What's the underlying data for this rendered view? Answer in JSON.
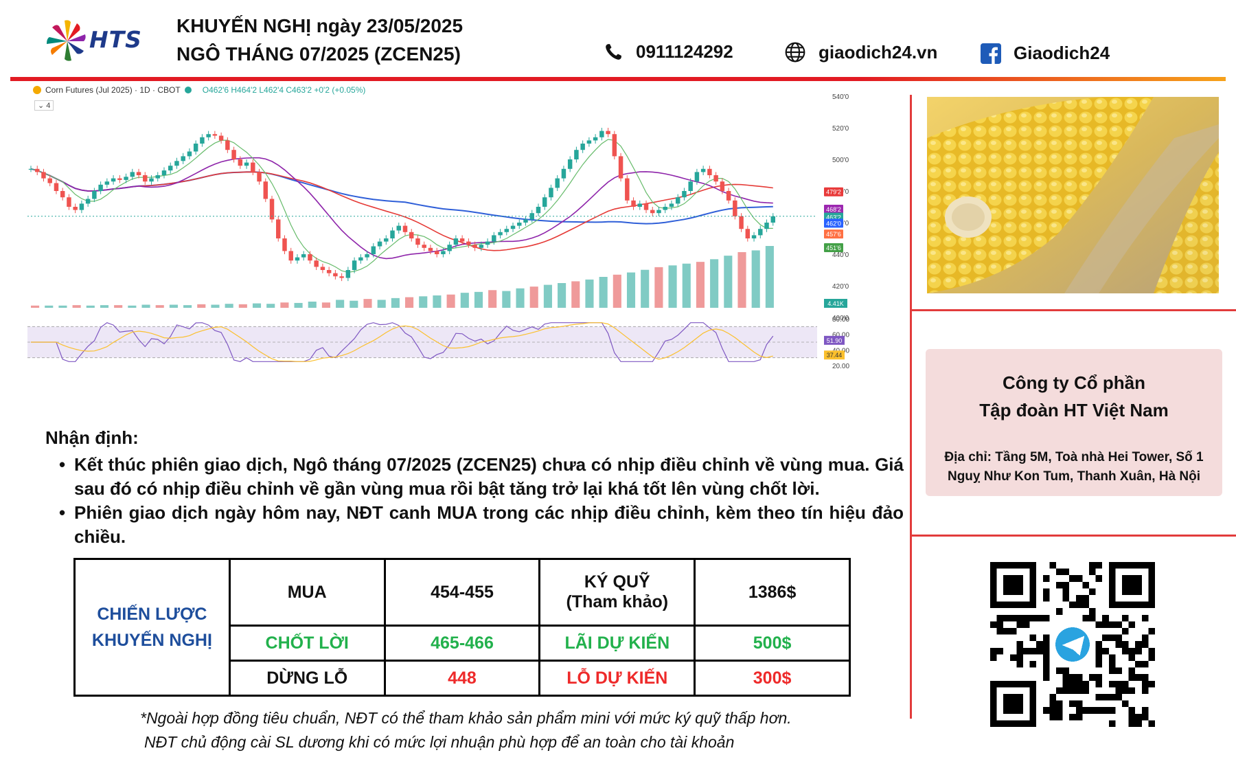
{
  "header": {
    "brand": "HTS",
    "title_line1": "KHUYẾN NGHỊ ngày 23/05/2025",
    "title_line2": "NGÔ THÁNG 07/2025 (ZCEN25)",
    "phone": "0911124292",
    "website": "giaodich24.vn",
    "facebook": "Giaodich24",
    "colors": {
      "rule_red": "#e21b23",
      "rule_orange": "#f6a21b",
      "brand_blue": "#1e3a8a"
    }
  },
  "chart_header": {
    "symbol": "Corn Futures (Jul 2025) · 1D · CBOT",
    "ohlc": "O462'6  H464'2  L462'4  C463'2  +0'2 (+0.05%)",
    "indicator_count": "4"
  },
  "chart_data": {
    "type": "line",
    "series": [
      {
        "values": [
          494,
          492,
          488,
          485,
          480,
          476,
          470,
          468,
          472,
          475,
          480,
          484,
          486,
          488,
          487,
          489,
          492,
          490,
          486,
          488,
          490,
          493,
          496,
          499,
          502,
          505,
          510,
          514,
          516,
          515,
          512,
          506,
          500,
          496,
          498,
          492,
          486,
          475,
          462,
          450,
          442,
          436,
          438,
          440,
          436,
          432,
          430,
          428,
          426,
          425,
          430,
          436,
          438,
          440,
          445,
          448,
          450,
          455,
          458,
          454,
          450,
          446,
          444,
          442,
          440,
          442,
          446,
          450,
          448,
          446,
          444,
          446,
          448,
          452,
          454,
          456,
          458,
          460,
          462,
          466,
          470,
          476,
          482,
          488,
          494,
          500,
          506,
          510,
          512,
          514,
          518,
          516,
          502,
          488,
          474,
          470,
          472,
          468,
          466,
          468,
          470,
          472,
          476,
          480,
          486,
          492,
          494,
          490,
          486,
          480,
          474,
          464,
          456,
          450,
          452,
          456,
          460,
          464
        ]
      }
    ],
    "y_ticks": [
      "540'0",
      "520'0",
      "500'0",
      "480'0",
      "460'0",
      "440'0",
      "420'0",
      "400'0"
    ],
    "price_labels": [
      {
        "text": "479'2",
        "color": "#e83a3a"
      },
      {
        "text": "468'2",
        "color": "#9c27b0"
      },
      {
        "text": "463'2",
        "color": "#26a69a"
      },
      {
        "text": "462'0",
        "color": "#2962ff"
      },
      {
        "text": "457'6",
        "color": "#ff7043"
      },
      {
        "text": "451'6",
        "color": "#43a047"
      }
    ],
    "volume_values": [
      5,
      5,
      5,
      6,
      5,
      6,
      6,
      5,
      7,
      6,
      7,
      6,
      8,
      7,
      9,
      8,
      10,
      9,
      12,
      11,
      14,
      12,
      18,
      16,
      20,
      18,
      22,
      24,
      26,
      28,
      30,
      34,
      36,
      40,
      38,
      44,
      48,
      52,
      56,
      60,
      64,
      70,
      75,
      80,
      86,
      92,
      96,
      100,
      104,
      110,
      118,
      126,
      130,
      140
    ],
    "volume_label": "4.41K",
    "rsi": {
      "ticks": [
        "80.00",
        "60.00",
        "40.00",
        "20.00"
      ],
      "rsi_label": "51.90",
      "ma_label": "37.44",
      "ylim": [
        20,
        80
      ]
    }
  },
  "analysis": {
    "title": "Nhận định:",
    "bullets": [
      "Kết thúc phiên giao dịch, Ngô tháng 07/2025 (ZCEN25) chưa có nhịp điều chỉnh về vùng mua. Giá sau đó có nhịp điều chỉnh về gần vùng mua rồi bật tăng trở lại khá tốt lên vùng chốt lời.",
      "Phiên giao dịch ngày hôm nay, NĐT canh MUA trong các nhịp điều chỉnh, kèm theo tín hiệu đảo chiều."
    ]
  },
  "strategy": {
    "label_line1": "CHIẾN LƯỢC",
    "label_line2": "KHUYẾN NGHỊ",
    "buy_label": "MUA",
    "buy_value": "454-455",
    "margin_label_line1": "KÝ QUỸ",
    "margin_label_line2": "(Tham khảo)",
    "margin_value": "1386$",
    "take_profit_label": "CHỐT LỜI",
    "take_profit_value": "465-466",
    "expected_profit_label": "LÃI DỰ KIẾN",
    "expected_profit_value": "500$",
    "stop_loss_label": "DỪNG LỖ",
    "stop_loss_value": "448",
    "expected_loss_label": "LỖ DỰ KIẾN",
    "expected_loss_value": "300$"
  },
  "footnotes": [
    "*Ngoài hợp đồng tiêu chuẩn, NĐT có thể tham khảo sản phẩm mini với mức ký quỹ thấp hơn.",
    "NĐT chủ động cài SL dương khi có mức lợi nhuận phù hợp để an toàn cho tài khoản"
  ],
  "company": {
    "name_line1": "Công ty Cổ phần",
    "name_line2": "Tập đoàn HT Việt Nam",
    "address": "Địa chỉ: Tầng 5M, Toà nhà Hei Tower, Số 1 Nguỵ Như Kon Tum, Thanh Xuân, Hà Nội"
  },
  "icons": [
    "hts-logo-icon",
    "phone-icon",
    "globe-icon",
    "facebook-icon",
    "telegram-icon",
    "qr-code"
  ]
}
